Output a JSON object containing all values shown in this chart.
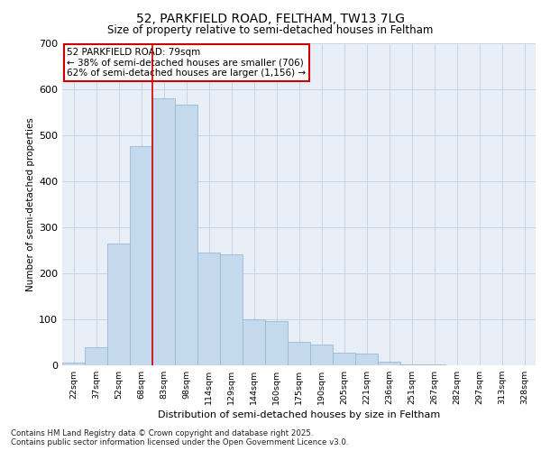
{
  "title_line1": "52, PARKFIELD ROAD, FELTHAM, TW13 7LG",
  "title_line2": "Size of property relative to semi-detached houses in Feltham",
  "xlabel": "Distribution of semi-detached houses by size in Feltham",
  "ylabel": "Number of semi-detached properties",
  "annotation_title": "52 PARKFIELD ROAD: 79sqm",
  "annotation_line2": "← 38% of semi-detached houses are smaller (706)",
  "annotation_line3": "62% of semi-detached houses are larger (1,156) →",
  "categories": [
    "22sqm",
    "37sqm",
    "52sqm",
    "68sqm",
    "83sqm",
    "98sqm",
    "114sqm",
    "129sqm",
    "144sqm",
    "160sqm",
    "175sqm",
    "190sqm",
    "205sqm",
    "221sqm",
    "236sqm",
    "251sqm",
    "267sqm",
    "282sqm",
    "297sqm",
    "313sqm",
    "328sqm"
  ],
  "values": [
    5,
    40,
    265,
    475,
    580,
    565,
    245,
    240,
    100,
    95,
    50,
    45,
    28,
    25,
    8,
    2,
    1,
    0,
    0,
    0,
    0
  ],
  "bar_color": "#c5d9ed",
  "bar_edge_color": "#9ab8d4",
  "vline_color": "#cc0000",
  "vline_x": 3.5,
  "grid_color": "#c8d4e3",
  "background_color": "#e8eef5",
  "ylim": [
    0,
    700
  ],
  "yticks": [
    0,
    100,
    200,
    300,
    400,
    500,
    600,
    700
  ],
  "footer_line1": "Contains HM Land Registry data © Crown copyright and database right 2025.",
  "footer_line2": "Contains public sector information licensed under the Open Government Licence v3.0."
}
